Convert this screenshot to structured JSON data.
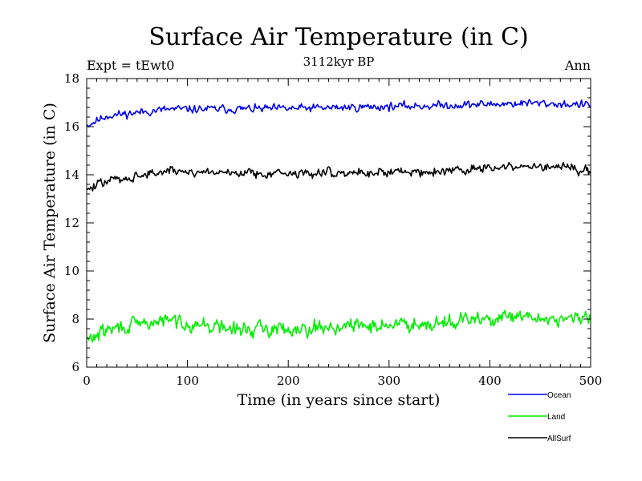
{
  "chart_data": {
    "type": "line",
    "title": "Surface Air Temperature (in C)",
    "subtitle": "3112kyr BP",
    "left_label": "Expt = tEwt0",
    "right_label": "Ann",
    "xlabel": "Time (in years since start)",
    "ylabel": "Surface Air Temperature (in C)",
    "xlim": [
      0,
      500
    ],
    "ylim": [
      6,
      18
    ],
    "xticks": [
      0,
      100,
      200,
      300,
      400,
      500
    ],
    "yticks": [
      6,
      8,
      10,
      12,
      14,
      16,
      18
    ],
    "grid": false,
    "legend_position": "bottom-right",
    "series": [
      {
        "name": "Ocean",
        "color": "#0000ee",
        "start": 16.05,
        "trend": [
          [
            0,
            16.05
          ],
          [
            20,
            16.45
          ],
          [
            80,
            16.72
          ],
          [
            200,
            16.75
          ],
          [
            350,
            16.88
          ],
          [
            440,
            16.98
          ],
          [
            500,
            16.9
          ]
        ],
        "noise": 0.12,
        "seed": 11
      },
      {
        "name": "Land",
        "color": "#00ee00",
        "start": 7.2,
        "trend": [
          [
            0,
            7.1
          ],
          [
            20,
            7.55
          ],
          [
            80,
            7.95
          ],
          [
            150,
            7.55
          ],
          [
            300,
            7.75
          ],
          [
            420,
            8.05
          ],
          [
            500,
            8.0
          ]
        ],
        "noise": 0.22,
        "seed": 29
      },
      {
        "name": "AllSurf",
        "color": "#000000",
        "start": 13.4,
        "trend": [
          [
            0,
            13.35
          ],
          [
            20,
            13.75
          ],
          [
            80,
            14.15
          ],
          [
            200,
            14.05
          ],
          [
            350,
            14.15
          ],
          [
            440,
            14.35
          ],
          [
            500,
            14.2
          ]
        ],
        "noise": 0.14,
        "seed": 47
      }
    ]
  }
}
